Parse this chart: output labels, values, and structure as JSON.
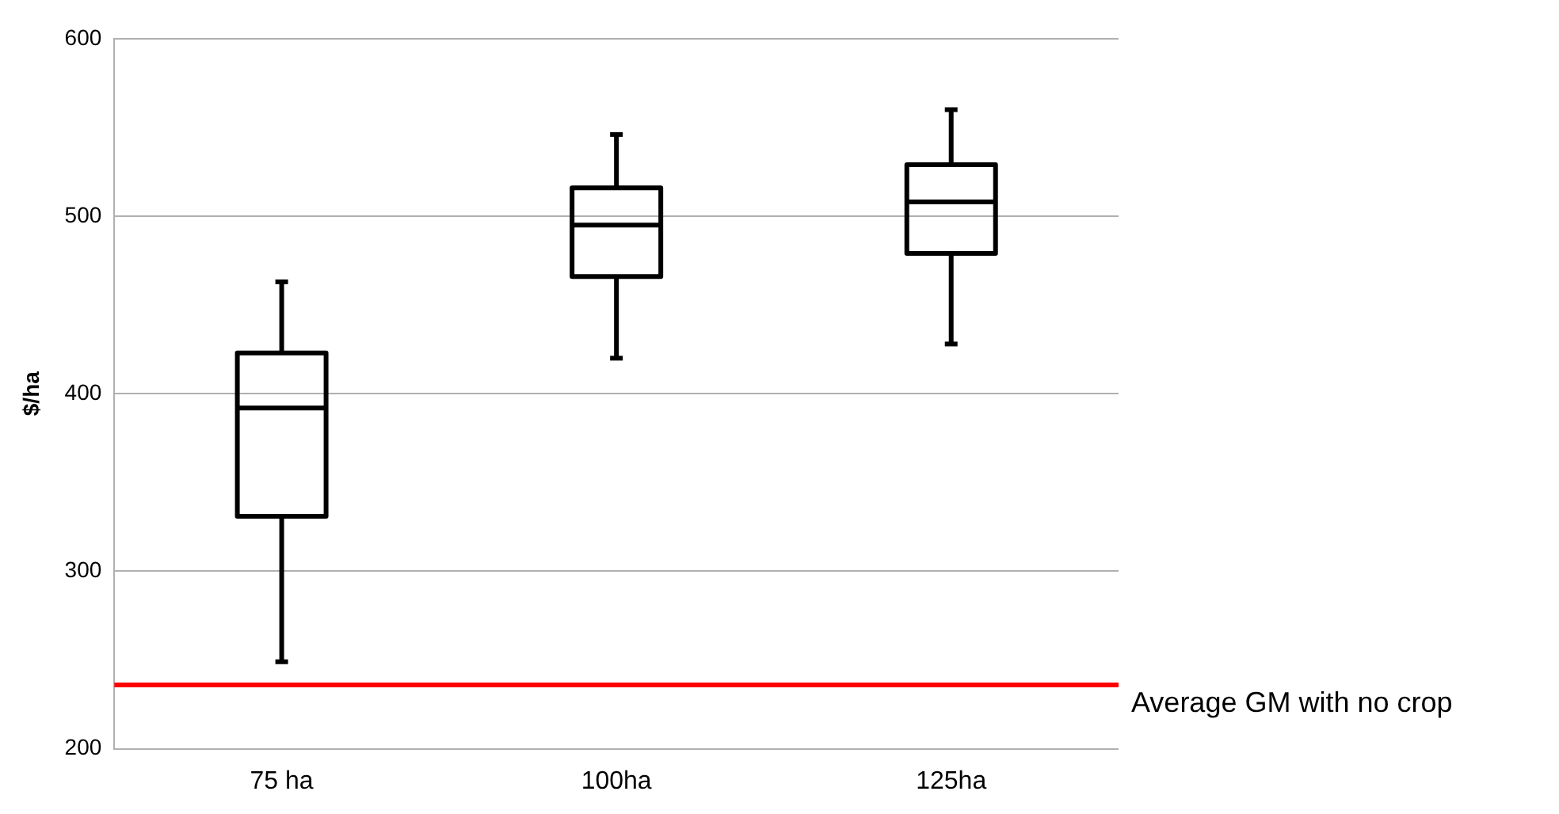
{
  "chart_data": {
    "type": "box",
    "ylabel": "$/ha",
    "categories": [
      "75 ha",
      "100ha",
      "125ha"
    ],
    "boxes": [
      {
        "low": 249,
        "q1": 331,
        "median": 392,
        "q3": 423,
        "high": 463
      },
      {
        "low": 420,
        "q1": 466,
        "median": 495,
        "q3": 516,
        "high": 546
      },
      {
        "low": 428,
        "q1": 479,
        "median": 508,
        "q3": 529,
        "high": 560
      }
    ],
    "color": "#000000",
    "ylim": [
      200,
      600
    ],
    "yticks": [
      200,
      300,
      400,
      500,
      600
    ],
    "grid": "y",
    "legend": false,
    "ref_lines": [
      {
        "axis": "y",
        "value": 236,
        "label": "Average GM with no crop",
        "color": "#ff0000"
      }
    ]
  }
}
